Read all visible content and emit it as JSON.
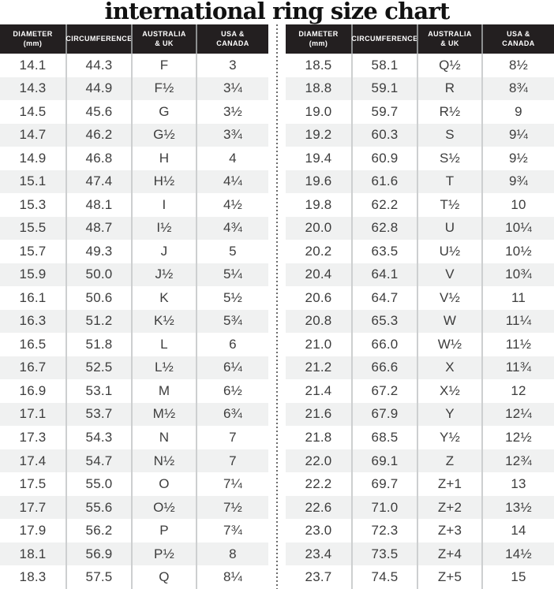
{
  "chart_data": {
    "type": "table",
    "title": "international ring size chart",
    "columns": [
      "DIAMETER (mm)",
      "CIRCUMFERENCE",
      "AUSTRALIA & UK",
      "USA & CANADA"
    ],
    "column_headers": [
      [
        "DIAMETER",
        "(mm)"
      ],
      [
        "CIRCUMFERENCE"
      ],
      [
        "AUSTRALIA",
        "& UK"
      ],
      [
        "USA &",
        "CANADA"
      ]
    ],
    "tables": [
      {
        "name": "left",
        "rows": [
          [
            "14.1",
            "44.3",
            "F",
            "3"
          ],
          [
            "14.3",
            "44.9",
            "F½",
            "3¼"
          ],
          [
            "14.5",
            "45.6",
            "G",
            "3½"
          ],
          [
            "14.7",
            "46.2",
            "G½",
            "3¾"
          ],
          [
            "14.9",
            "46.8",
            "H",
            "4"
          ],
          [
            "15.1",
            "47.4",
            "H½",
            "4¼"
          ],
          [
            "15.3",
            "48.1",
            "I",
            "4½"
          ],
          [
            "15.5",
            "48.7",
            "I½",
            "4¾"
          ],
          [
            "15.7",
            "49.3",
            "J",
            "5"
          ],
          [
            "15.9",
            "50.0",
            "J½",
            "5¼"
          ],
          [
            "16.1",
            "50.6",
            "K",
            "5½"
          ],
          [
            "16.3",
            "51.2",
            "K½",
            "5¾"
          ],
          [
            "16.5",
            "51.8",
            "L",
            "6"
          ],
          [
            "16.7",
            "52.5",
            "L½",
            "6¼"
          ],
          [
            "16.9",
            "53.1",
            "M",
            "6½"
          ],
          [
            "17.1",
            "53.7",
            "M½",
            "6¾"
          ],
          [
            "17.3",
            "54.3",
            "N",
            "7"
          ],
          [
            "17.4",
            "54.7",
            "N½",
            "7"
          ],
          [
            "17.5",
            "55.0",
            "O",
            "7¼"
          ],
          [
            "17.7",
            "55.6",
            "O½",
            "7½"
          ],
          [
            "17.9",
            "56.2",
            "P",
            "7¾"
          ],
          [
            "18.1",
            "56.9",
            "P½",
            "8"
          ],
          [
            "18.3",
            "57.5",
            "Q",
            "8¼"
          ]
        ]
      },
      {
        "name": "right",
        "rows": [
          [
            "18.5",
            "58.1",
            "Q½",
            "8½"
          ],
          [
            "18.8",
            "59.1",
            "R",
            "8¾"
          ],
          [
            "19.0",
            "59.7",
            "R½",
            "9"
          ],
          [
            "19.2",
            "60.3",
            "S",
            "9¼"
          ],
          [
            "19.4",
            "60.9",
            "S½",
            "9½"
          ],
          [
            "19.6",
            "61.6",
            "T",
            "9¾"
          ],
          [
            "19.8",
            "62.2",
            "T½",
            "10"
          ],
          [
            "20.0",
            "62.8",
            "U",
            "10¼"
          ],
          [
            "20.2",
            "63.5",
            "U½",
            "10½"
          ],
          [
            "20.4",
            "64.1",
            "V",
            "10¾"
          ],
          [
            "20.6",
            "64.7",
            "V½",
            "11"
          ],
          [
            "20.8",
            "65.3",
            "W",
            "11¼"
          ],
          [
            "21.0",
            "66.0",
            "W½",
            "11½"
          ],
          [
            "21.2",
            "66.6",
            "X",
            "11¾"
          ],
          [
            "21.4",
            "67.2",
            "X½",
            "12"
          ],
          [
            "21.6",
            "67.9",
            "Y",
            "12¼"
          ],
          [
            "21.8",
            "68.5",
            "Y½",
            "12½"
          ],
          [
            "22.0",
            "69.1",
            "Z",
            "12¾"
          ],
          [
            "22.2",
            "69.7",
            "Z+1",
            "13"
          ],
          [
            "22.6",
            "71.0",
            "Z+2",
            "13½"
          ],
          [
            "23.0",
            "72.3",
            "Z+3",
            "14"
          ],
          [
            "23.4",
            "73.5",
            "Z+4",
            "14½"
          ],
          [
            "23.7",
            "74.5",
            "Z+5",
            "15"
          ]
        ]
      }
    ]
  },
  "colors": {
    "header_bg": "#231f20",
    "header_text": "#ffffff",
    "row_alt_bg": "#f0f1f1",
    "body_text": "#3d3d3d",
    "header_divider": "#8d8f90",
    "body_divider": "#cdcfd0",
    "dotted_divider": "#6b6b6b",
    "title_color": "#111111"
  }
}
